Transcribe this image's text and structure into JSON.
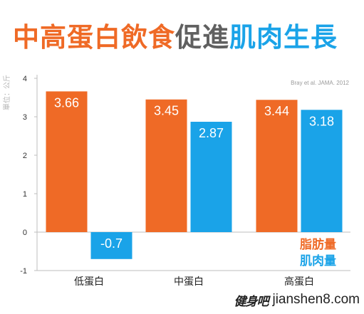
{
  "title": {
    "part1": "中高蛋白飲食",
    "part2": "促進",
    "part3": "肌肉生長"
  },
  "watermark": {
    "brand_glyphs": "健身吧",
    "site": "jianshen8.com"
  },
  "colors": {
    "orange": "#ef6a26",
    "blue": "#1aa3e8",
    "axis_text": "#333333"
  },
  "chart_data": {
    "type": "bar",
    "title": "",
    "ylabel": "單位：公斤",
    "xlabel": "",
    "ylim": [
      -1,
      4
    ],
    "yticks": [
      -1,
      0,
      1,
      2,
      3,
      4
    ],
    "categories": [
      "低蛋白",
      "中蛋白",
      "高蛋白"
    ],
    "series": [
      {
        "name": "脂肪量",
        "values": [
          3.66,
          3.45,
          3.44
        ],
        "labels": [
          "3.66",
          "3.45",
          "3.44"
        ],
        "color": "#ef6a26"
      },
      {
        "name": "肌肉量",
        "values": [
          -0.7,
          2.87,
          3.18
        ],
        "labels": [
          "-0.7",
          "2.87",
          "3.18"
        ],
        "color": "#1aa3e8"
      }
    ],
    "source": "Bray et al. JAMA. 2012",
    "grid": false,
    "legend_position": "bottom-right"
  }
}
